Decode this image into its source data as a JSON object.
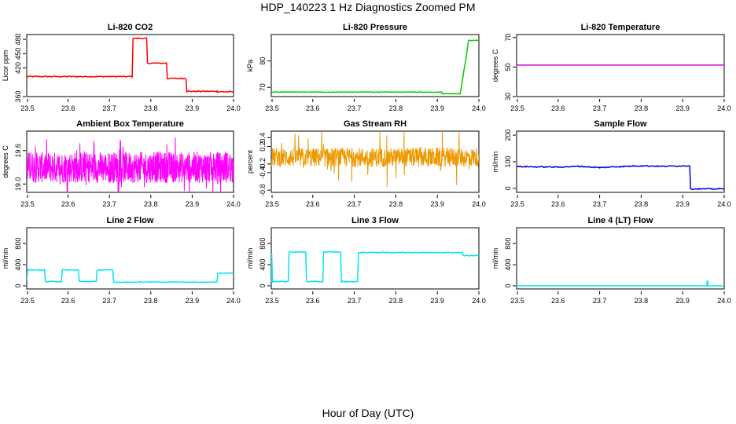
{
  "figure": {
    "title": "HDP_140223  1 Hz Diagnostics Zoomed PM",
    "xlabel": "Hour of Day (UTC)"
  },
  "chart_data": [
    {
      "type": "line",
      "title": "Li-820 CO2",
      "ylabel": "Licor ppm",
      "color": "#ff0000",
      "xlim": [
        23.5,
        24.0
      ],
      "ylim": [
        360,
        490
      ],
      "xticks": [
        "23.5",
        "23.6",
        "23.7",
        "23.8",
        "23.9",
        "24.0"
      ],
      "yticks": [
        {
          "v": 360,
          "label": "360"
        },
        {
          "v": 420,
          "label": "420"
        },
        {
          "v": 450,
          "label": "450"
        },
        {
          "v": 480,
          "label": "480"
        }
      ],
      "series": [
        {
          "style": "step",
          "noise": 1.2,
          "x": [
            23.5,
            23.755,
            23.757,
            23.79,
            23.792,
            23.838,
            23.84,
            23.885,
            23.887,
            23.96,
            23.962,
            24.0
          ],
          "y": [
            402,
            402,
            482,
            482,
            430,
            430,
            398,
            398,
            371,
            371,
            370,
            370
          ]
        }
      ]
    },
    {
      "type": "line",
      "title": "Li-820 Pressure",
      "ylabel": "kPa",
      "color": "#00cc00",
      "xlim": [
        23.5,
        24.0
      ],
      "ylim": [
        66.5,
        90
      ],
      "xticks": [
        "23.5",
        "23.6",
        "23.7",
        "23.8",
        "23.9",
        "24.0"
      ],
      "yticks": [
        {
          "v": 70,
          "label": "70"
        },
        {
          "v": 80,
          "label": "80"
        }
      ],
      "series": [
        {
          "style": "step",
          "noise": 0.1,
          "x": [
            23.5,
            23.91,
            23.912,
            23.955,
            23.97,
            23.975,
            23.99,
            24.0
          ],
          "y": [
            68.2,
            68.2,
            67.6,
            67.6,
            82.0,
            87.8,
            87.8,
            87.8
          ]
        }
      ]
    },
    {
      "type": "line",
      "title": "Li-820 Temperature",
      "ylabel": "degrees C",
      "color": "#dd00dd",
      "xlim": [
        23.5,
        24.0
      ],
      "ylim": [
        30,
        72
      ],
      "xticks": [
        "23.5",
        "23.6",
        "23.7",
        "23.8",
        "23.9",
        "24.0"
      ],
      "yticks": [
        {
          "v": 30,
          "label": "30"
        },
        {
          "v": 50,
          "label": "50"
        },
        {
          "v": 70,
          "label": "70"
        }
      ],
      "series": [
        {
          "style": "step",
          "noise": 0,
          "x": [
            23.5,
            24.0
          ],
          "y": [
            51.3,
            51.3
          ]
        }
      ]
    },
    {
      "type": "line",
      "title": "Ambient Box Temperature",
      "ylabel": "degrees C",
      "color": "#ff00ff",
      "xlim": [
        23.5,
        24.0
      ],
      "ylim": [
        18.85,
        19.95
      ],
      "xticks": [
        "23.5",
        "23.6",
        "23.7",
        "23.8",
        "23.9",
        "24.0"
      ],
      "yticks": [
        {
          "v": 19.0,
          "label": "19.0"
        },
        {
          "v": 19.6,
          "label": "19.6"
        }
      ],
      "series": [
        {
          "style": "noisy",
          "mean": 19.3,
          "amp": 0.28,
          "spike": 0.55,
          "count": 900,
          "x": [
            23.5,
            24.0
          ]
        }
      ]
    },
    {
      "type": "line",
      "title": "Gas Stream RH",
      "ylabel": "percent",
      "color": "#ee9900",
      "xlim": [
        23.5,
        24.0
      ],
      "ylim": [
        -0.85,
        0.55
      ],
      "xticks": [
        "23.5",
        "23.6",
        "23.7",
        "23.8",
        "23.9",
        "24.0"
      ],
      "yticks": [
        {
          "v": -0.8,
          "label": "-0.8"
        },
        {
          "v": -0.4,
          "label": "-0.4"
        },
        {
          "v": -0.2,
          "label": "-0.2"
        },
        {
          "v": 0.2,
          "label": "0.2"
        },
        {
          "v": 0.4,
          "label": "0.4"
        }
      ],
      "series": [
        {
          "style": "noisy",
          "mean": -0.05,
          "amp": 0.22,
          "spike": 0.7,
          "count": 700,
          "x": [
            23.5,
            24.0
          ]
        }
      ]
    },
    {
      "type": "line",
      "title": "Sample Flow",
      "ylabel": "ml/min",
      "color": "#0000dd",
      "xlim": [
        23.5,
        24.0
      ],
      "ylim": [
        -15,
        215
      ],
      "xticks": [
        "23.5",
        "23.6",
        "23.7",
        "23.8",
        "23.9",
        "24.0"
      ],
      "yticks": [
        {
          "v": 0,
          "label": "0"
        },
        {
          "v": 100,
          "label": "100"
        },
        {
          "v": 200,
          "label": "200"
        }
      ],
      "series": [
        {
          "style": "step",
          "noise": 2,
          "x": [
            23.5,
            23.6,
            23.65,
            23.7,
            23.75,
            23.8,
            23.85,
            23.917,
            23.919,
            24.0
          ],
          "y": [
            82,
            80,
            83,
            78,
            82,
            85,
            83,
            85,
            -2,
            -2
          ]
        }
      ]
    },
    {
      "type": "line",
      "title": "Line 2 Flow",
      "ylabel": "ml/min",
      "color": "#00e5ee",
      "xlim": [
        23.5,
        24.0
      ],
      "ylim": [
        -60,
        1100
      ],
      "xticks": [
        "23.5",
        "23.6",
        "23.7",
        "23.8",
        "23.9",
        "24.0"
      ],
      "yticks": [
        {
          "v": 0,
          "label": "0"
        },
        {
          "v": 400,
          "label": "400"
        },
        {
          "v": 800,
          "label": "800"
        }
      ],
      "series": [
        {
          "style": "step",
          "noise": 6,
          "x": [
            23.5,
            23.502,
            23.543,
            23.545,
            23.584,
            23.586,
            23.625,
            23.627,
            23.668,
            23.67,
            23.708,
            23.71,
            23.96,
            23.962,
            24.0
          ],
          "y": [
            110,
            300,
            300,
            80,
            80,
            300,
            300,
            80,
            80,
            300,
            300,
            70,
            70,
            240,
            240
          ]
        }
      ]
    },
    {
      "type": "line",
      "title": "Line 3 Flow",
      "ylabel": "ml/min",
      "color": "#00e5ee",
      "xlim": [
        23.5,
        24.0
      ],
      "ylim": [
        -60,
        1100
      ],
      "xticks": [
        "23.5",
        "23.6",
        "23.7",
        "23.8",
        "23.9",
        "24.0"
      ],
      "yticks": [
        {
          "v": 0,
          "label": "0"
        },
        {
          "v": 400,
          "label": "400"
        },
        {
          "v": 800,
          "label": "800"
        }
      ],
      "series": [
        {
          "style": "step",
          "noise": 8,
          "x": [
            23.5,
            23.501,
            23.503,
            23.541,
            23.543,
            23.583,
            23.585,
            23.624,
            23.626,
            23.667,
            23.669,
            23.708,
            23.71,
            23.96,
            23.962,
            24.0
          ],
          "y": [
            80,
            620,
            80,
            80,
            640,
            640,
            80,
            80,
            640,
            640,
            80,
            80,
            630,
            630,
            570,
            570
          ]
        }
      ]
    },
    {
      "type": "line",
      "title": "Line 4 (LT) Flow",
      "ylabel": "ml/min",
      "color": "#00e5ee",
      "xlim": [
        23.5,
        24.0
      ],
      "ylim": [
        -60,
        1100
      ],
      "xticks": [
        "23.5",
        "23.6",
        "23.7",
        "23.8",
        "23.9",
        "24.0"
      ],
      "yticks": [
        {
          "v": 0,
          "label": "0"
        },
        {
          "v": 400,
          "label": "400"
        },
        {
          "v": 800,
          "label": "800"
        }
      ],
      "series": [
        {
          "style": "step",
          "noise": 0,
          "x": [
            23.5,
            23.958,
            23.959,
            23.96,
            23.961,
            24.0
          ],
          "y": [
            0,
            0,
            90,
            90,
            0,
            0
          ]
        }
      ]
    }
  ]
}
